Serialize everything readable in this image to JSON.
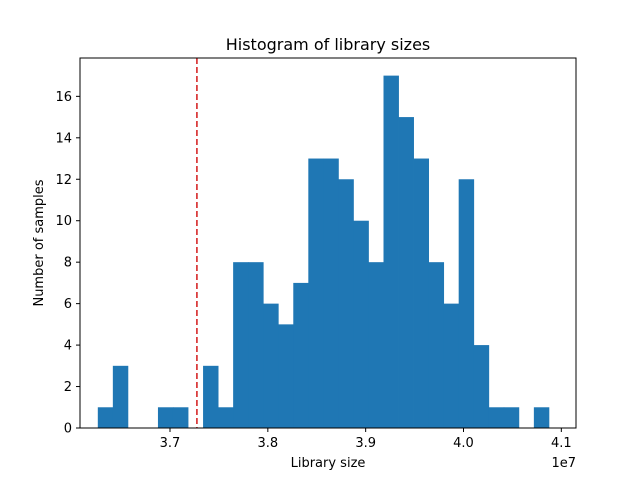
{
  "chart_data": {
    "type": "bar",
    "title": "Histogram of library sizes",
    "xlabel": "Library size",
    "ylabel": "Number of samples",
    "x_offset_label": "1e7",
    "xlim": [
      3.608,
      4.115
    ],
    "ylim": [
      0,
      17.85
    ],
    "x_ticks": [
      {
        "value": 3.7,
        "label": "3.7"
      },
      {
        "value": 3.8,
        "label": "3.8"
      },
      {
        "value": 3.9,
        "label": "3.9"
      },
      {
        "value": 4.0,
        "label": "4.0"
      },
      {
        "value": 4.1,
        "label": "4.1"
      }
    ],
    "y_ticks": [
      {
        "value": 0,
        "label": "0"
      },
      {
        "value": 2,
        "label": "2"
      },
      {
        "value": 4,
        "label": "4"
      },
      {
        "value": 6,
        "label": "6"
      },
      {
        "value": 8,
        "label": "8"
      },
      {
        "value": 10,
        "label": "10"
      },
      {
        "value": 12,
        "label": "12"
      },
      {
        "value": 14,
        "label": "14"
      },
      {
        "value": 16,
        "label": "16"
      }
    ],
    "bin_start": 3.6262,
    "bin_width": 0.01537,
    "values": [
      1,
      3,
      0,
      0,
      1,
      1,
      0,
      3,
      1,
      8,
      8,
      6,
      5,
      7,
      13,
      13,
      12,
      10,
      8,
      17,
      15,
      13,
      8,
      6,
      12,
      4,
      1,
      1,
      0,
      1
    ],
    "bar_color": "#1f77b4",
    "threshold_line": {
      "x": 3.7275,
      "color": "#d62728",
      "style": "dashed"
    },
    "grid": false,
    "legend": "none"
  }
}
